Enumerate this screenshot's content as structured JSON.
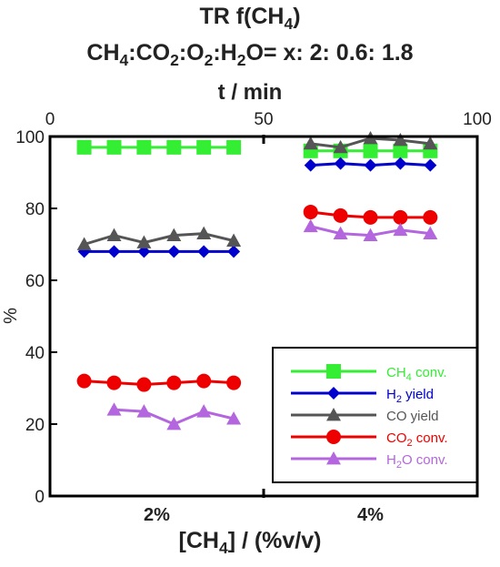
{
  "title_line1": {
    "pre": "TR f(CH",
    "sub": "4",
    "post": ")"
  },
  "title_line2": {
    "parts": [
      {
        "t": "CH"
      },
      {
        "s": "4"
      },
      {
        "t": ":CO"
      },
      {
        "s": "2"
      },
      {
        "t": ":O"
      },
      {
        "s": "2"
      },
      {
        "t": ":H"
      },
      {
        "s": "2"
      },
      {
        "t": "O= x: 2: 0.6: 1.8"
      }
    ]
  },
  "colors": {
    "ch4": "#33ee33",
    "h2": "#0000cc",
    "co": "#555555",
    "co2": "#ee0000",
    "h2o": "#b366dd",
    "frame": "#000000"
  },
  "chart_data": {
    "type": "line",
    "top_axis": {
      "label": "t / min",
      "range": [
        0,
        100
      ],
      "ticks": [
        "0",
        "50",
        "100"
      ]
    },
    "bottom_axis": {
      "label_parts": [
        {
          "t": "[CH"
        },
        {
          "s": "4"
        },
        {
          "t": "] / (%v/v)"
        }
      ],
      "categories": [
        "2%",
        "4%"
      ]
    },
    "y_axis": {
      "label": "%",
      "range": [
        0,
        100
      ],
      "ticks": [
        0,
        20,
        40,
        60,
        80,
        100
      ]
    },
    "grid": false,
    "legend_position": "bottom-right",
    "series": [
      {
        "key": "ch4",
        "name_parts": [
          {
            "t": "CH"
          },
          {
            "s": "4"
          },
          {
            "t": " conv."
          }
        ],
        "marker": "square",
        "segments": [
          {
            "x": [
              8,
              15,
              22,
              29,
              36,
              43
            ],
            "y": [
              97,
              97,
              97,
              97,
              97,
              97
            ]
          },
          {
            "x": [
              61,
              68,
              75,
              82,
              89
            ],
            "y": [
              96,
              96,
              96,
              96,
              96
            ]
          }
        ]
      },
      {
        "key": "h2",
        "name_parts": [
          {
            "t": "H"
          },
          {
            "s": "2"
          },
          {
            "t": " yield"
          }
        ],
        "marker": "diamond",
        "segments": [
          {
            "x": [
              8,
              15,
              22,
              29,
              36,
              43
            ],
            "y": [
              68,
              68,
              68,
              68,
              68,
              68
            ]
          },
          {
            "x": [
              61,
              68,
              75,
              82,
              89
            ],
            "y": [
              92,
              92.5,
              92,
              92.5,
              92
            ]
          }
        ]
      },
      {
        "key": "co",
        "name_parts": [
          {
            "t": "CO yield"
          }
        ],
        "marker": "triangle",
        "segments": [
          {
            "x": [
              8,
              15,
              22,
              29,
              36,
              43
            ],
            "y": [
              70,
              72.5,
              70.5,
              72.5,
              73,
              71
            ]
          },
          {
            "x": [
              61,
              68,
              75,
              82,
              89
            ],
            "y": [
              98,
              97,
              99.5,
              99,
              98
            ]
          }
        ]
      },
      {
        "key": "co2",
        "name_parts": [
          {
            "t": "CO"
          },
          {
            "s": "2"
          },
          {
            "t": " conv."
          }
        ],
        "marker": "circle",
        "segments": [
          {
            "x": [
              8,
              15,
              22,
              29,
              36,
              43
            ],
            "y": [
              32,
              31.5,
              31,
              31.5,
              32,
              31.5
            ]
          },
          {
            "x": [
              61,
              68,
              75,
              82,
              89
            ],
            "y": [
              79,
              78,
              77.5,
              77.5,
              77.5
            ]
          }
        ]
      },
      {
        "key": "h2o",
        "name_parts": [
          {
            "t": "H"
          },
          {
            "s": "2"
          },
          {
            "t": "O conv."
          }
        ],
        "marker": "triangle",
        "segments": [
          {
            "x": [
              15,
              22,
              29,
              36,
              43
            ],
            "y": [
              24,
              23.5,
              20,
              23.5,
              21.5
            ]
          },
          {
            "x": [
              61,
              68,
              75,
              82,
              89
            ],
            "y": [
              75,
              73,
              72.5,
              74,
              73
            ]
          }
        ]
      }
    ]
  }
}
